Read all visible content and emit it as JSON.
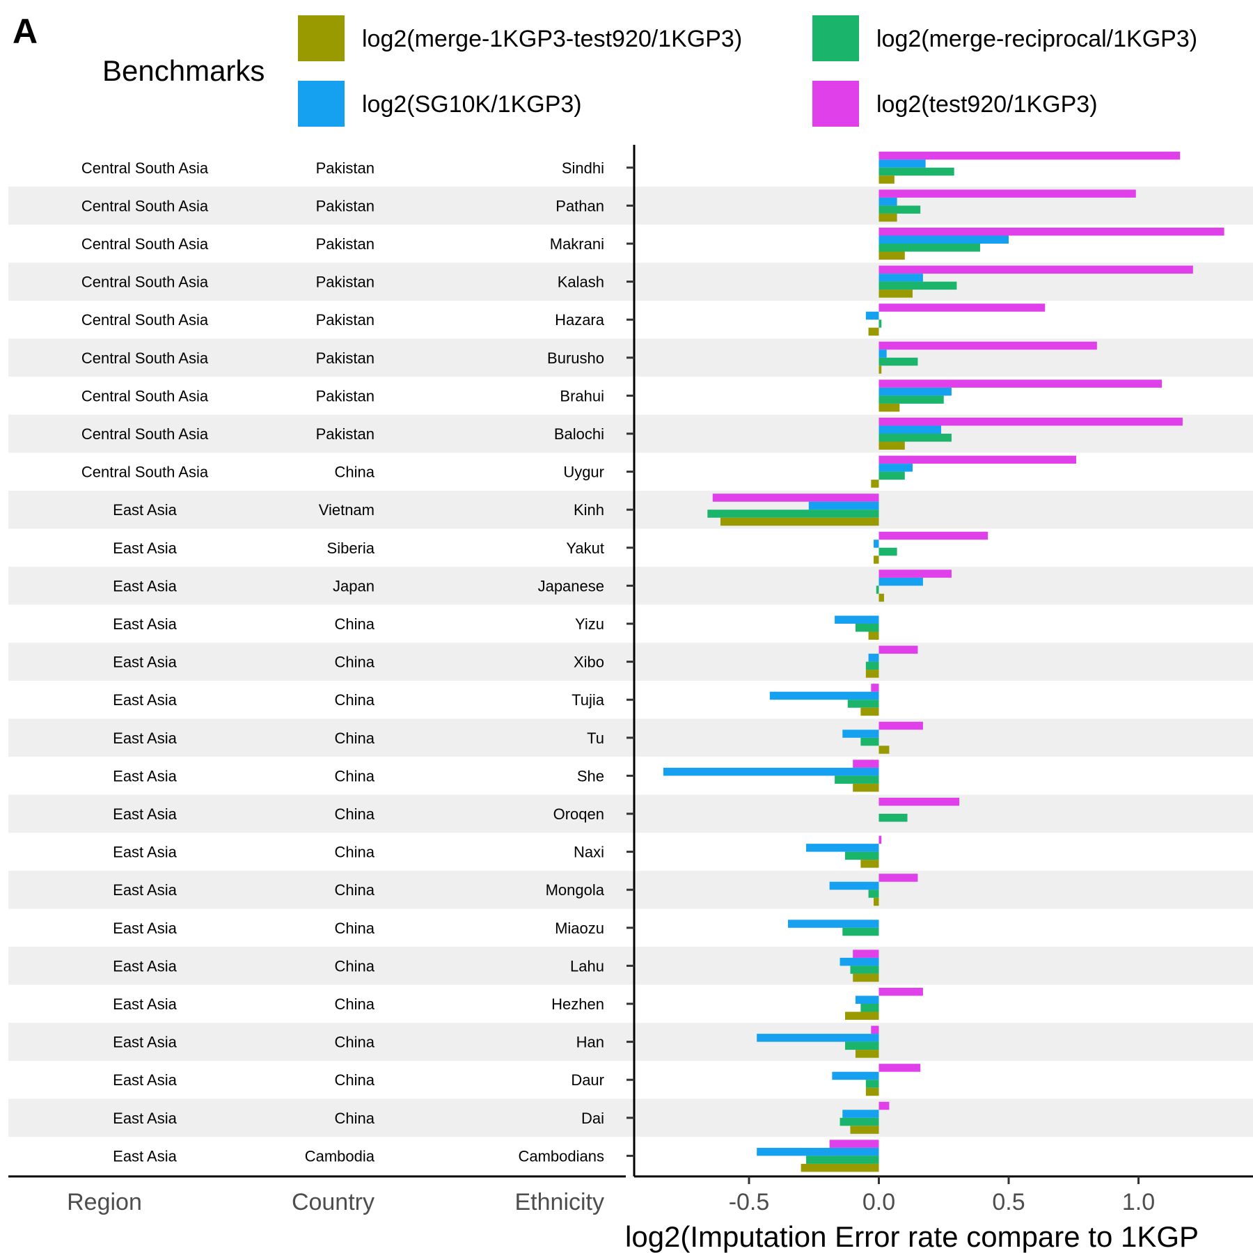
{
  "panel_label": "A",
  "colors": {
    "merge_1kgp3_test920": "#999900",
    "merge_reciprocal": "#1ab56b",
    "sg10k": "#16a0f0",
    "test920": "#e040ea",
    "band": "#efefef"
  },
  "legend": {
    "title": "Benchmarks",
    "items": [
      {
        "key": "merge_1kgp3_test920",
        "label": "log2(merge-1KGP3-test920/1KGP3)"
      },
      {
        "key": "merge_reciprocal",
        "label": "log2(merge-reciprocal/1KGP3)"
      },
      {
        "key": "sg10k",
        "label": "log2(SG10K/1KGP3)"
      },
      {
        "key": "test920",
        "label": "log2(test920/1KGP3)"
      }
    ]
  },
  "table_headers": {
    "region": "Region",
    "country": "Country",
    "ethnicity": "Ethnicity"
  },
  "chart_data": {
    "type": "bar",
    "orientation": "horizontal",
    "xlabel": "log2(Imputation Error rate compare to 1KGP",
    "xlim": [
      -0.93,
      1.4
    ],
    "xticks": [
      -0.5,
      0.0,
      0.5,
      1.0
    ],
    "xtick_labels": [
      "-0.5",
      "0.0",
      "0.5",
      "1.0"
    ],
    "grid": false,
    "legend_position": "top",
    "series_order": [
      "test920",
      "sg10k",
      "merge_reciprocal",
      "merge_1kgp3_test920"
    ],
    "rows": [
      {
        "region": "Central South Asia",
        "country": "Pakistan",
        "ethnicity": "Sindhi",
        "test920": 1.16,
        "sg10k": 0.18,
        "merge_reciprocal": 0.29,
        "merge_1kgp3_test920": 0.06
      },
      {
        "region": "Central South Asia",
        "country": "Pakistan",
        "ethnicity": "Pathan",
        "test920": 0.99,
        "sg10k": 0.07,
        "merge_reciprocal": 0.16,
        "merge_1kgp3_test920": 0.07
      },
      {
        "region": "Central South Asia",
        "country": "Pakistan",
        "ethnicity": "Makrani",
        "test920": 1.33,
        "sg10k": 0.5,
        "merge_reciprocal": 0.39,
        "merge_1kgp3_test920": 0.1
      },
      {
        "region": "Central South Asia",
        "country": "Pakistan",
        "ethnicity": "Kalash",
        "test920": 1.21,
        "sg10k": 0.17,
        "merge_reciprocal": 0.3,
        "merge_1kgp3_test920": 0.13
      },
      {
        "region": "Central South Asia",
        "country": "Pakistan",
        "ethnicity": "Hazara",
        "test920": 0.64,
        "sg10k": -0.05,
        "merge_reciprocal": 0.01,
        "merge_1kgp3_test920": -0.04
      },
      {
        "region": "Central South Asia",
        "country": "Pakistan",
        "ethnicity": "Burusho",
        "test920": 0.84,
        "sg10k": 0.03,
        "merge_reciprocal": 0.15,
        "merge_1kgp3_test920": 0.01
      },
      {
        "region": "Central South Asia",
        "country": "Pakistan",
        "ethnicity": "Brahui",
        "test920": 1.09,
        "sg10k": 0.28,
        "merge_reciprocal": 0.25,
        "merge_1kgp3_test920": 0.08
      },
      {
        "region": "Central South Asia",
        "country": "Pakistan",
        "ethnicity": "Balochi",
        "test920": 1.17,
        "sg10k": 0.24,
        "merge_reciprocal": 0.28,
        "merge_1kgp3_test920": 0.1
      },
      {
        "region": "Central South Asia",
        "country": "China",
        "ethnicity": "Uygur",
        "test920": 0.76,
        "sg10k": 0.13,
        "merge_reciprocal": 0.1,
        "merge_1kgp3_test920": -0.03
      },
      {
        "region": "East Asia",
        "country": "Vietnam",
        "ethnicity": "Kinh",
        "test920": -0.64,
        "sg10k": -0.27,
        "merge_reciprocal": -0.66,
        "merge_1kgp3_test920": -0.61
      },
      {
        "region": "East Asia",
        "country": "Siberia",
        "ethnicity": "Yakut",
        "test920": 0.42,
        "sg10k": -0.02,
        "merge_reciprocal": 0.07,
        "merge_1kgp3_test920": -0.02
      },
      {
        "region": "East Asia",
        "country": "Japan",
        "ethnicity": "Japanese",
        "test920": 0.28,
        "sg10k": 0.17,
        "merge_reciprocal": -0.01,
        "merge_1kgp3_test920": 0.02
      },
      {
        "region": "East Asia",
        "country": "China",
        "ethnicity": "Yizu",
        "test920": 0.0,
        "sg10k": -0.17,
        "merge_reciprocal": -0.09,
        "merge_1kgp3_test920": -0.04
      },
      {
        "region": "East Asia",
        "country": "China",
        "ethnicity": "Xibo",
        "test920": 0.15,
        "sg10k": -0.04,
        "merge_reciprocal": -0.05,
        "merge_1kgp3_test920": -0.05
      },
      {
        "region": "East Asia",
        "country": "China",
        "ethnicity": "Tujia",
        "test920": -0.03,
        "sg10k": -0.42,
        "merge_reciprocal": -0.12,
        "merge_1kgp3_test920": -0.07
      },
      {
        "region": "East Asia",
        "country": "China",
        "ethnicity": "Tu",
        "test920": 0.17,
        "sg10k": -0.14,
        "merge_reciprocal": -0.07,
        "merge_1kgp3_test920": 0.04
      },
      {
        "region": "East Asia",
        "country": "China",
        "ethnicity": "She",
        "test920": -0.1,
        "sg10k": -0.83,
        "merge_reciprocal": -0.17,
        "merge_1kgp3_test920": -0.1
      },
      {
        "region": "East Asia",
        "country": "China",
        "ethnicity": "Oroqen",
        "test920": 0.31,
        "sg10k": 0.0,
        "merge_reciprocal": 0.11,
        "merge_1kgp3_test920": 0.0
      },
      {
        "region": "East Asia",
        "country": "China",
        "ethnicity": "Naxi",
        "test920": 0.01,
        "sg10k": -0.28,
        "merge_reciprocal": -0.13,
        "merge_1kgp3_test920": -0.07
      },
      {
        "region": "East Asia",
        "country": "China",
        "ethnicity": "Mongola",
        "test920": 0.15,
        "sg10k": -0.19,
        "merge_reciprocal": -0.04,
        "merge_1kgp3_test920": -0.02
      },
      {
        "region": "East Asia",
        "country": "China",
        "ethnicity": "Miaozu",
        "test920": 0.0,
        "sg10k": -0.35,
        "merge_reciprocal": -0.14,
        "merge_1kgp3_test920": 0.0
      },
      {
        "region": "East Asia",
        "country": "China",
        "ethnicity": "Lahu",
        "test920": -0.1,
        "sg10k": -0.15,
        "merge_reciprocal": -0.11,
        "merge_1kgp3_test920": -0.1
      },
      {
        "region": "East Asia",
        "country": "China",
        "ethnicity": "Hezhen",
        "test920": 0.17,
        "sg10k": -0.09,
        "merge_reciprocal": -0.07,
        "merge_1kgp3_test920": -0.13
      },
      {
        "region": "East Asia",
        "country": "China",
        "ethnicity": "Han",
        "test920": -0.03,
        "sg10k": -0.47,
        "merge_reciprocal": -0.13,
        "merge_1kgp3_test920": -0.09
      },
      {
        "region": "East Asia",
        "country": "China",
        "ethnicity": "Daur",
        "test920": 0.16,
        "sg10k": -0.18,
        "merge_reciprocal": -0.05,
        "merge_1kgp3_test920": -0.05
      },
      {
        "region": "East Asia",
        "country": "China",
        "ethnicity": "Dai",
        "test920": 0.04,
        "sg10k": -0.14,
        "merge_reciprocal": -0.15,
        "merge_1kgp3_test920": -0.11
      },
      {
        "region": "East Asia",
        "country": "Cambodia",
        "ethnicity": "Cambodians",
        "test920": -0.19,
        "sg10k": -0.47,
        "merge_reciprocal": -0.28,
        "merge_1kgp3_test920": -0.3
      }
    ]
  }
}
